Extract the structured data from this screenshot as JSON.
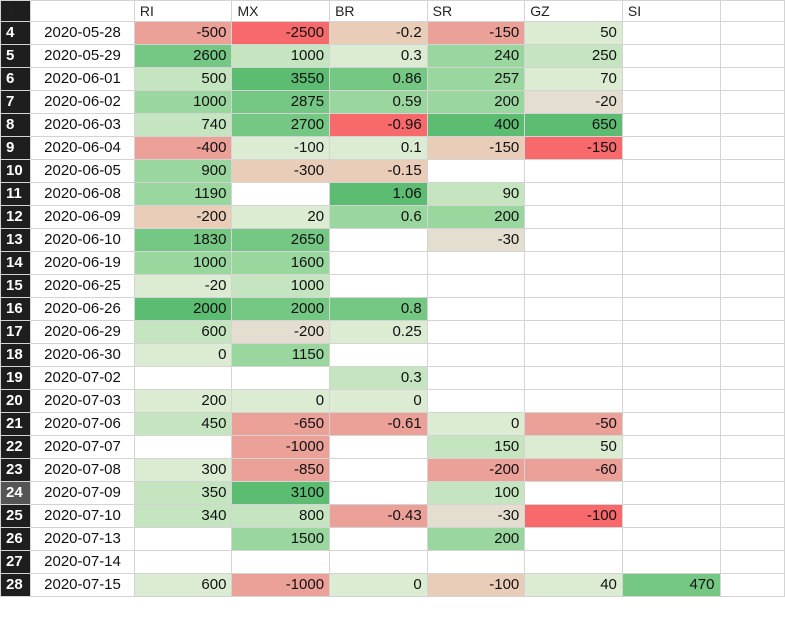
{
  "columns": [
    "RI",
    "MX",
    "BR",
    "SR",
    "GZ",
    "SI"
  ],
  "header_row_number": "3",
  "colors": {
    "neg_strong": "#f8696b",
    "neg_mid": "#eba098",
    "neg_light": "#e9cdb8",
    "neutral": "#e4ded0",
    "pos_faint": "#dcecd3",
    "pos_light": "#c4e5c0",
    "pos_mid": "#9ad79e",
    "pos_strong": "#75c884",
    "pos_max": "#5cbd72"
  },
  "rows": [
    {
      "n": "4",
      "date": "2020-05-28",
      "values": [
        "-500",
        "-2500",
        "-0.2",
        "-150",
        "50",
        ""
      ]
    },
    {
      "n": "5",
      "date": "2020-05-29",
      "values": [
        "2600",
        "1000",
        "0.3",
        "240",
        "250",
        ""
      ]
    },
    {
      "n": "6",
      "date": "2020-06-01",
      "values": [
        "500",
        "3550",
        "0.86",
        "257",
        "70",
        ""
      ]
    },
    {
      "n": "7",
      "date": "2020-06-02",
      "values": [
        "1000",
        "2875",
        "0.59",
        "200",
        "-20",
        ""
      ]
    },
    {
      "n": "8",
      "date": "2020-06-03",
      "values": [
        "740",
        "2700",
        "-0.96",
        "400",
        "650",
        ""
      ]
    },
    {
      "n": "9",
      "date": "2020-06-04",
      "values": [
        "-400",
        "-100",
        "0.1",
        "-150",
        "-150",
        ""
      ]
    },
    {
      "n": "10",
      "date": "2020-06-05",
      "values": [
        "900",
        "-300",
        "-0.15",
        "",
        "",
        ""
      ]
    },
    {
      "n": "11",
      "date": "2020-06-08",
      "values": [
        "1190",
        "",
        "1.06",
        "90",
        "",
        ""
      ]
    },
    {
      "n": "12",
      "date": "2020-06-09",
      "values": [
        "-200",
        "20",
        "0.6",
        "200",
        "",
        ""
      ]
    },
    {
      "n": "13",
      "date": "2020-06-10",
      "values": [
        "1830",
        "2650",
        "",
        "-30",
        "",
        ""
      ]
    },
    {
      "n": "14",
      "date": "2020-06-19",
      "values": [
        "1000",
        "1600",
        "",
        "",
        "",
        ""
      ]
    },
    {
      "n": "15",
      "date": "2020-06-25",
      "values": [
        "-20",
        "1000",
        "",
        "",
        "",
        ""
      ]
    },
    {
      "n": "16",
      "date": "2020-06-26",
      "values": [
        "2000",
        "2000",
        "0.8",
        "",
        "",
        ""
      ]
    },
    {
      "n": "17",
      "date": "2020-06-29",
      "values": [
        "600",
        "-200",
        "0.25",
        "",
        "",
        ""
      ]
    },
    {
      "n": "18",
      "date": "2020-06-30",
      "values": [
        "0",
        "1150",
        "",
        "",
        "",
        ""
      ]
    },
    {
      "n": "19",
      "date": "2020-07-02",
      "values": [
        "",
        "",
        "0.3",
        "",
        "",
        ""
      ]
    },
    {
      "n": "20",
      "date": "2020-07-03",
      "values": [
        "200",
        "0",
        "0",
        "",
        "",
        ""
      ]
    },
    {
      "n": "21",
      "date": "2020-07-06",
      "values": [
        "450",
        "-650",
        "-0.61",
        "0",
        "-50",
        ""
      ]
    },
    {
      "n": "22",
      "date": "2020-07-07",
      "values": [
        "",
        "-1000",
        "",
        "150",
        "50",
        ""
      ]
    },
    {
      "n": "23",
      "date": "2020-07-08",
      "values": [
        "300",
        "-850",
        "",
        "-200",
        "-60",
        ""
      ]
    },
    {
      "n": "24",
      "date": "2020-07-09",
      "values": [
        "350",
        "3100",
        "",
        "100",
        "",
        ""
      ]
    },
    {
      "n": "25",
      "date": "2020-07-10",
      "values": [
        "340",
        "800",
        "-0.43",
        "-30",
        "-100",
        ""
      ]
    },
    {
      "n": "26",
      "date": "2020-07-13",
      "values": [
        "",
        "1500",
        "",
        "200",
        "",
        ""
      ]
    },
    {
      "n": "27",
      "date": "2020-07-14",
      "values": [
        "",
        "",
        "",
        "",
        "",
        ""
      ]
    },
    {
      "n": "28",
      "date": "2020-07-15",
      "values": [
        "600",
        "-1000",
        "0",
        "-100",
        "40",
        "470"
      ]
    }
  ],
  "cell_fills": [
    [
      "neg_mid",
      "neg_strong",
      "neg_light",
      "neg_mid",
      "pos_faint",
      ""
    ],
    [
      "pos_strong",
      "pos_light",
      "pos_faint",
      "pos_mid",
      "pos_light",
      ""
    ],
    [
      "pos_light",
      "pos_max",
      "pos_strong",
      "pos_mid",
      "pos_faint",
      ""
    ],
    [
      "pos_mid",
      "pos_strong",
      "pos_mid",
      "pos_mid",
      "neutral",
      ""
    ],
    [
      "pos_light",
      "pos_strong",
      "neg_strong",
      "pos_max",
      "pos_max",
      ""
    ],
    [
      "neg_mid",
      "pos_faint",
      "pos_faint",
      "neg_light",
      "neg_strong",
      ""
    ],
    [
      "pos_mid",
      "neg_light",
      "neg_light",
      "",
      "",
      ""
    ],
    [
      "pos_mid",
      "",
      "pos_max",
      "pos_light",
      "",
      ""
    ],
    [
      "neg_light",
      "pos_faint",
      "pos_mid",
      "pos_mid",
      "",
      ""
    ],
    [
      "pos_strong",
      "pos_strong",
      "",
      "neutral",
      "",
      ""
    ],
    [
      "pos_mid",
      "pos_mid",
      "",
      "",
      "",
      ""
    ],
    [
      "pos_faint",
      "pos_light",
      "",
      "",
      "",
      ""
    ],
    [
      "pos_max",
      "pos_strong",
      "pos_strong",
      "",
      "",
      ""
    ],
    [
      "pos_light",
      "neutral",
      "pos_faint",
      "",
      "",
      ""
    ],
    [
      "pos_faint",
      "pos_mid",
      "",
      "",
      "",
      ""
    ],
    [
      "",
      "",
      "pos_light",
      "",
      "",
      ""
    ],
    [
      "pos_faint",
      "pos_faint",
      "pos_faint",
      "",
      "",
      ""
    ],
    [
      "pos_light",
      "neg_mid",
      "neg_mid",
      "pos_faint",
      "neg_mid",
      ""
    ],
    [
      "",
      "neg_mid",
      "",
      "pos_light",
      "pos_faint",
      ""
    ],
    [
      "pos_faint",
      "neg_mid",
      "",
      "neg_mid",
      "neg_mid",
      ""
    ],
    [
      "pos_light",
      "pos_max",
      "",
      "pos_light",
      "",
      ""
    ],
    [
      "pos_light",
      "pos_light",
      "neg_mid",
      "neutral",
      "neg_strong",
      ""
    ],
    [
      "",
      "pos_mid",
      "",
      "pos_mid",
      "",
      ""
    ],
    [
      "",
      "",
      "",
      "",
      "",
      ""
    ],
    [
      "pos_faint",
      "neg_mid",
      "pos_faint",
      "neg_light",
      "pos_faint",
      "pos_strong"
    ]
  ],
  "selected_row": "24"
}
